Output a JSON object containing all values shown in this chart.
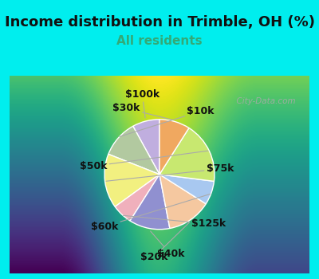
{
  "title": "Income distribution in Trimble, OH (%)",
  "subtitle": "All residents",
  "title_fontsize": 13,
  "subtitle_fontsize": 11,
  "subtitle_color": "#33aa77",
  "background_color": "#00EEEE",
  "chart_bg_gradient_top": "#d0ede0",
  "chart_bg_gradient_bottom": "#e8f8f0",
  "labels": [
    "$100k",
    "$10k",
    "$75k",
    "$125k",
    "$40k",
    "$20k",
    "$60k",
    "$50k",
    "$30k"
  ],
  "sizes": [
    8,
    11,
    16,
    6,
    12,
    13,
    7,
    18,
    9
  ],
  "colors": [
    "#c0aedf",
    "#b2c9a0",
    "#f2f080",
    "#f0b0bc",
    "#9090d0",
    "#f5c8a0",
    "#a8c8f0",
    "#c8e870",
    "#f0a860"
  ],
  "startangle": 90,
  "label_fontsize": 9,
  "watermark": "  City-Data.com"
}
